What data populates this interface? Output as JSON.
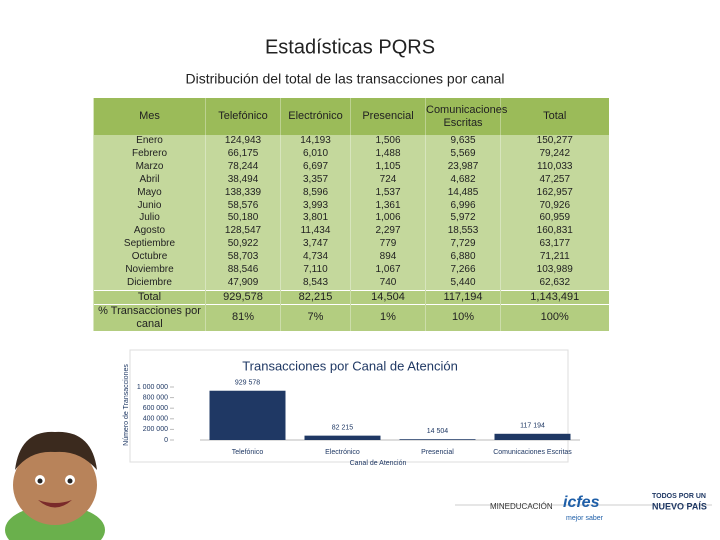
{
  "title": "Estadísticas PQRS",
  "subtitle": "Distribución del total de las transacciones por canal",
  "table": {
    "header": [
      "Mes",
      "Telefónico",
      "Electrónico",
      "Presencial",
      "Comunicaciones Escritas",
      "Total"
    ],
    "rows": [
      [
        "Enero",
        "124,943",
        "14,193",
        "1,506",
        "9,635",
        "150,277"
      ],
      [
        "Febrero",
        "66,175",
        "6,010",
        "1,488",
        "5,569",
        "79,242"
      ],
      [
        "Marzo",
        "78,244",
        "6,697",
        "1,105",
        "23,987",
        "110,033"
      ],
      [
        "Abril",
        "38,494",
        "3,357",
        "724",
        "4,682",
        "47,257"
      ],
      [
        "Mayo",
        "138,339",
        "8,596",
        "1,537",
        "14,485",
        "162,957"
      ],
      [
        "Junio",
        "58,576",
        "3,993",
        "1,361",
        "6,996",
        "70,926"
      ],
      [
        "Julio",
        "50,180",
        "3,801",
        "1,006",
        "5,972",
        "60,959"
      ],
      [
        "Agosto",
        "128,547",
        "11,434",
        "2,297",
        "18,553",
        "160,831"
      ],
      [
        "Septiembre",
        "50,922",
        "3,747",
        "779",
        "7,729",
        "63,177"
      ],
      [
        "Octubre",
        "58,703",
        "4,734",
        "894",
        "6,880",
        "71,211"
      ],
      [
        "Noviembre",
        "88,546",
        "7,110",
        "1,067",
        "7,266",
        "103,989"
      ],
      [
        "Diciembre",
        "47,909",
        "8,543",
        "740",
        "5,440",
        "62,632"
      ]
    ],
    "footer": [
      [
        "Total",
        "929,578",
        "82,215",
        "14,504",
        "117,194",
        "1,143,491"
      ],
      [
        "% Transacciones por canal",
        "81%",
        "7%",
        "1%",
        "10%",
        "100%"
      ]
    ]
  },
  "chart_data": {
    "type": "bar",
    "title": "Transacciones por Canal de Atención",
    "x_label": "Canal de Atención",
    "y_label": "Número de Transacciones",
    "categories": [
      "Telefónico",
      "Electrónico",
      "Presencial",
      "Comunicaciones Escritas"
    ],
    "values": [
      929578,
      82215,
      14504,
      117194
    ],
    "value_labels": [
      "929 578",
      "82 215",
      "14 504",
      "117 194"
    ],
    "color": "#1f3864",
    "ylim": [
      0,
      1000000
    ],
    "yticks": [
      0,
      {
        "value": 200000,
        "label": "200 000"
      },
      {
        "value": 400000,
        "label": "400 000"
      },
      {
        "value": 600000,
        "label": "600 000"
      },
      {
        "value": 800000,
        "label": "800 000"
      },
      {
        "value": 1000000,
        "label": "1 000 000"
      }
    ]
  },
  "logos": [
    "MINEDUCACIÓN",
    "icfes",
    "mejor saber",
    "TODOS POR UN",
    "NUEVO PAÍS"
  ]
}
